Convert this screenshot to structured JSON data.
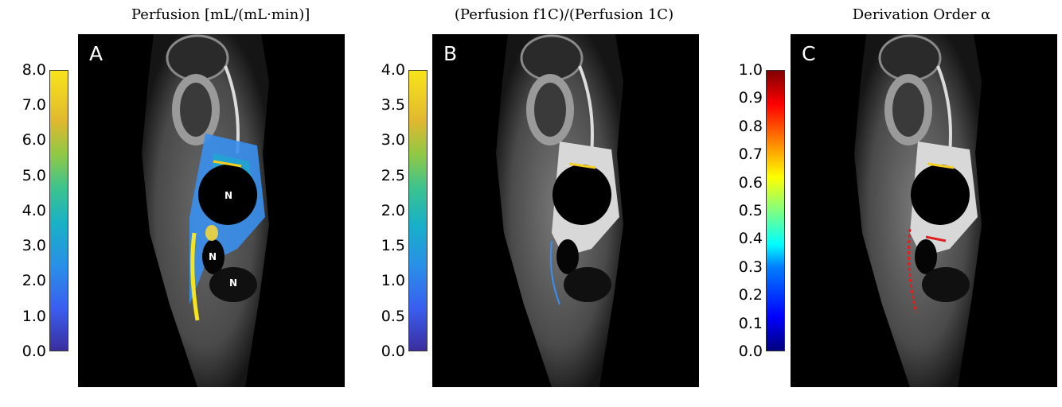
{
  "panels": [
    {
      "letter": "A",
      "title": "Perfusion [mL/(mL·min)]",
      "colorbar_ticks": [
        "8.0",
        "7.0",
        "6.0",
        "5.0",
        "4.0",
        "3.0",
        "2.0",
        "1.0",
        "0.0"
      ],
      "colormap": "parula",
      "region_labels": [
        "N",
        "N",
        "N"
      ]
    },
    {
      "letter": "B",
      "title": "(Perfusion f1C)/(Perfusion 1C)",
      "colorbar_ticks": [
        "4.0",
        "3.5",
        "3.0",
        "2.5",
        "2.0",
        "1.5",
        "1.0",
        "0.5",
        "0.0"
      ],
      "colormap": "parula"
    },
    {
      "letter": "C",
      "title": "Derivation Order α",
      "colorbar_ticks": [
        "1.0",
        "0.9",
        "0.8",
        "0.7",
        "0.6",
        "0.5",
        "0.4",
        "0.3",
        "0.2",
        "0.1",
        "0.0"
      ],
      "colormap": "jet"
    }
  ]
}
